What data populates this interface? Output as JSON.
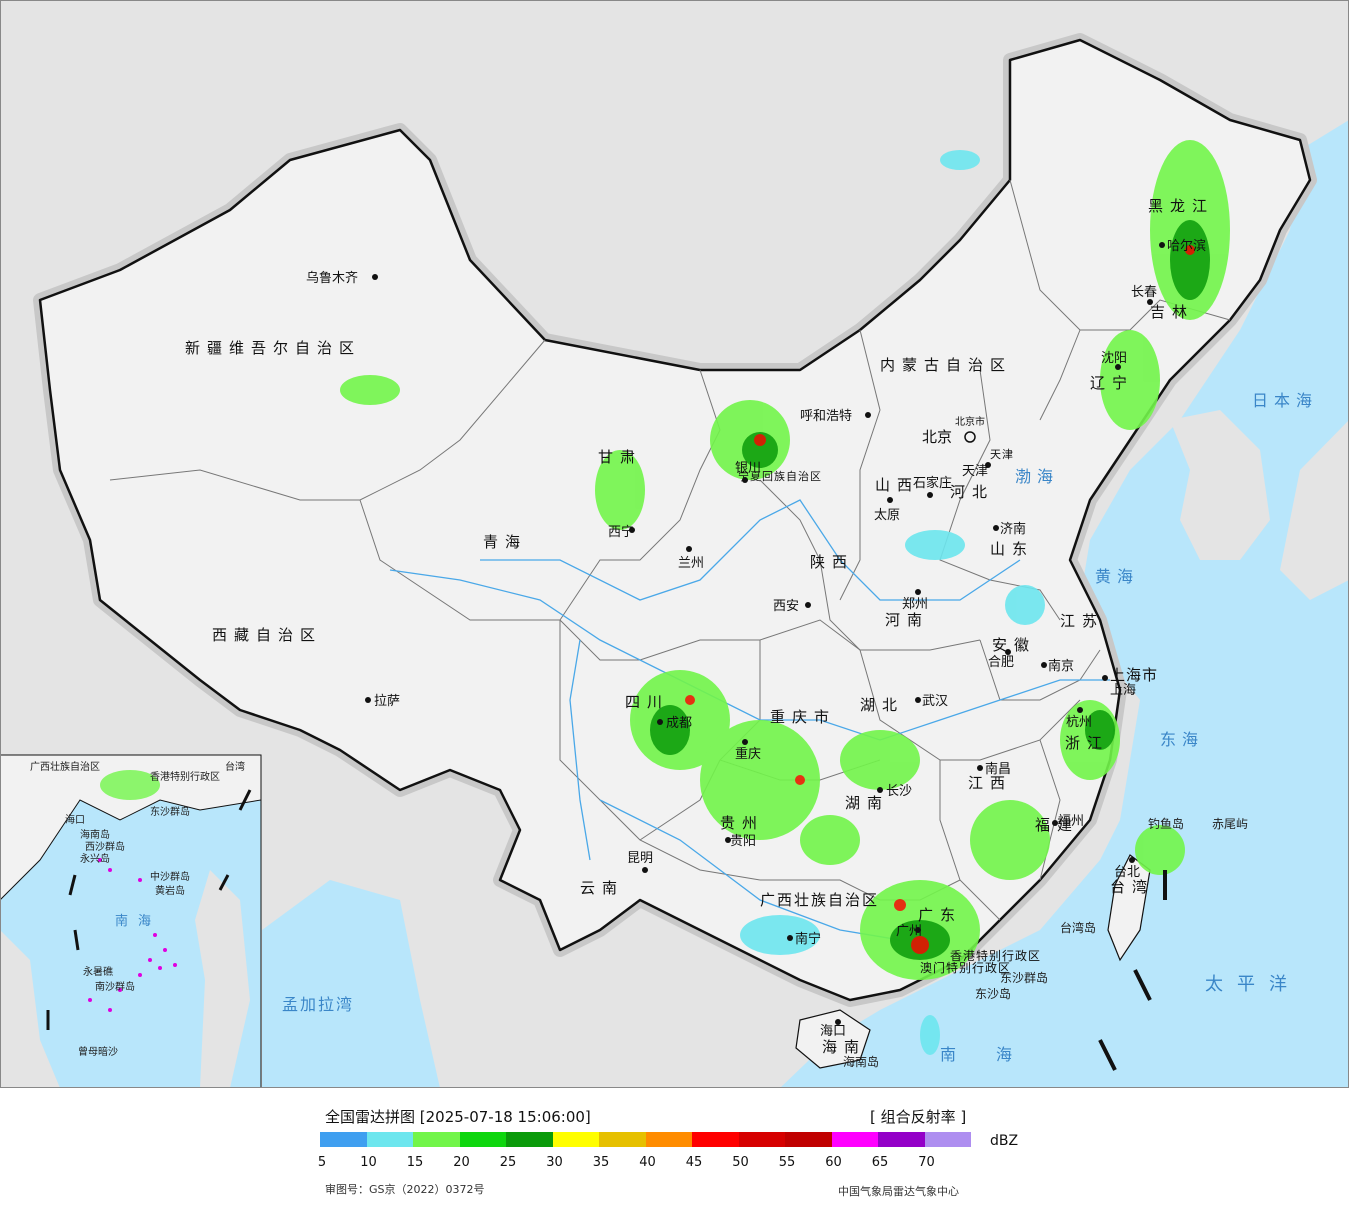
{
  "map": {
    "province_labels": [
      "新疆维吾尔自治区",
      "西藏自治区",
      "青海",
      "甘肃",
      "内蒙古自治区",
      "黑龙江",
      "吉林",
      "辽宁",
      "河北",
      "山西",
      "山东",
      "河南",
      "陕西",
      "宁夏回族自治区",
      "四川",
      "重庆市",
      "湖北",
      "湖南",
      "安徽",
      "江苏",
      "上海市",
      "浙江",
      "江西",
      "福建",
      "贵州",
      "云南",
      "广西壮族自治区",
      "广东",
      "香港特别行政区",
      "澳门特别行政区",
      "海南",
      "台湾",
      "天津",
      "北京市"
    ],
    "cities": [
      "乌鲁木齐",
      "拉萨",
      "西宁",
      "兰州",
      "银川",
      "呼和浩特",
      "北京",
      "天津",
      "石家庄",
      "太原",
      "济南",
      "郑州",
      "西安",
      "成都",
      "重庆",
      "武汉",
      "合肥",
      "南京",
      "上海",
      "杭州",
      "南昌",
      "长沙",
      "福州",
      "台北",
      "贵阳",
      "昆明",
      "南宁",
      "广州",
      "海口",
      "沈阳",
      "长春",
      "哈尔滨"
    ],
    "seas": [
      "日本海",
      "渤海",
      "黄海",
      "东海",
      "太平洋",
      "南海",
      "孟加拉湾"
    ],
    "islands": [
      "钓鱼岛",
      "赤尾屿",
      "台湾岛",
      "东沙群岛",
      "东沙岛",
      "海南岛"
    ],
    "inset_labels": [
      "广西壮族自治区",
      "香港特别行政区",
      "台湾",
      "海口",
      "海南岛",
      "东沙群岛",
      "西沙群岛",
      "永兴岛",
      "中沙群岛",
      "黄岩岛",
      "南海",
      "永暑礁",
      "南沙群岛",
      "曾母暗沙"
    ]
  },
  "legend": {
    "title": "全国雷达拼图 [2025-07-18 15:06:00]",
    "product": "[ 组合反射率 ]",
    "unit": "dBZ",
    "ticks": [
      "5",
      "10",
      "15",
      "20",
      "25",
      "30",
      "35",
      "40",
      "45",
      "50",
      "55",
      "60",
      "65",
      "70"
    ],
    "colors": [
      "#3f9ff0",
      "#6de6ee",
      "#72f54a",
      "#0ed60e",
      "#0a9a0a",
      "#fffe00",
      "#e6c000",
      "#ff8c00",
      "#ff0000",
      "#d60000",
      "#c00000",
      "#ff00ff",
      "#9400c8",
      "#ae8ef0"
    ],
    "review_number": "审图号：GS京（2022）0372号",
    "source": "中国气象局雷达气象中心"
  }
}
